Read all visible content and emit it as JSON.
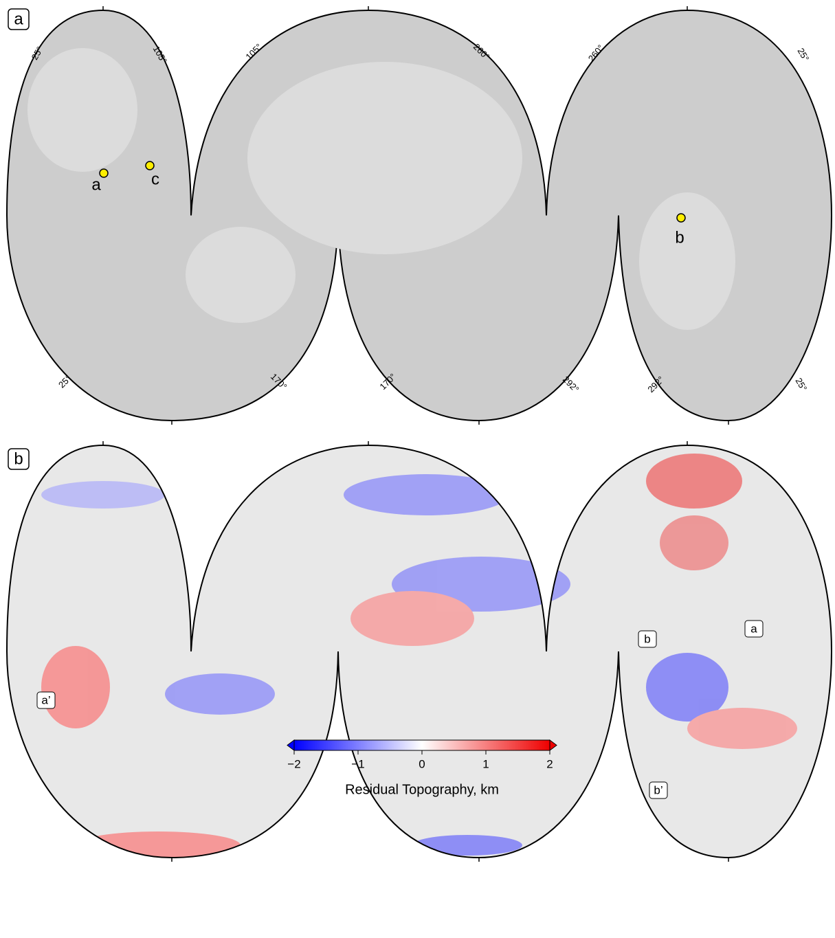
{
  "panel_a": {
    "label": "a",
    "meridians": [
      "25°",
      "105°",
      "105°",
      "260°",
      "260°",
      "25°",
      "25°",
      "170°",
      "170°",
      "292°",
      "292°",
      "25°"
    ],
    "sites": [
      "a",
      "c",
      "b"
    ]
  },
  "panel_b": {
    "label": "b",
    "profile_labels": [
      "b",
      "a",
      "a’",
      "b’"
    ]
  },
  "colorbar": {
    "lim": [
      -2,
      2
    ],
    "ticks": [
      {
        "value": -2,
        "label": "−2"
      },
      {
        "value": -1,
        "label": "−1"
      },
      0,
      1,
      2
    ],
    "label": "Residual Topography, km"
  }
}
